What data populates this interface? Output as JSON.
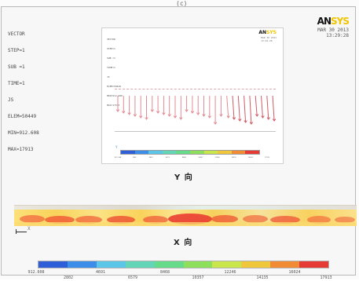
{
  "window": {
    "header_fragment": "(c)",
    "title_lines": [
      "VECTOR",
      "STEP=1",
      "SUB =1",
      "TIME=1",
      "JS",
      "ELEM=50449",
      "MIN=912.608",
      "MAX=17913"
    ],
    "logo": {
      "main": "AN",
      "accent": "SYS"
    },
    "date_lines": [
      "MAR 30 2013",
      "13:29:28"
    ]
  },
  "inset": {
    "title_lines": [
      "VECTOR",
      "STEP=1",
      "SUB =1",
      "TIME=1",
      "JS",
      "ELEM=50449",
      "MIN=912.608",
      "MAX=17913"
    ],
    "logo": {
      "main": "AN",
      "accent": "SYS"
    },
    "date_lines": [
      "MAR 30 2013",
      "13:29:28"
    ],
    "axis_label": "Y",
    "scale_values": [
      "912.608",
      "2802",
      "4691",
      "6579",
      "8468",
      "10357",
      "12246",
      "14135",
      "16024",
      "17913"
    ]
  },
  "labels": {
    "y_direction": "Y 向",
    "x_direction": "X 向",
    "coordinate_axis": "X"
  },
  "legend": {
    "values": [
      "912.608",
      "2802",
      "4691",
      "6579",
      "8468",
      "10357",
      "12246",
      "14135",
      "16024",
      "17913"
    ],
    "colors": [
      "#2f5fd8",
      "#3c8ee8",
      "#5cc6e8",
      "#62d6b6",
      "#66db8a",
      "#8ddf5c",
      "#c9e64a",
      "#f0c73a",
      "#f18b34",
      "#e63b34"
    ]
  },
  "colors": {
    "background": "#fbfbfb",
    "frame": "#b9b9b9",
    "accent": "#f1c500"
  }
}
